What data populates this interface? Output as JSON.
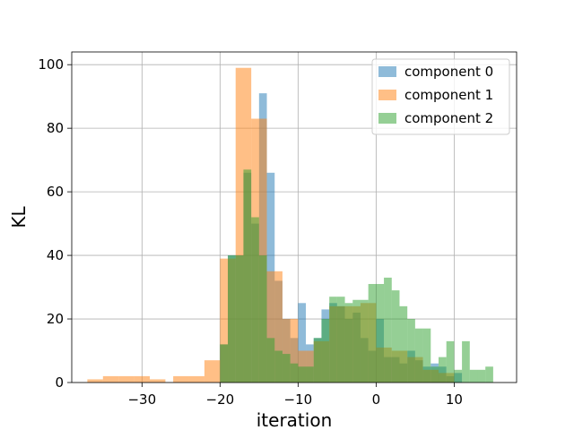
{
  "chart_data": {
    "type": "bar",
    "title": "",
    "xlabel": "iteration",
    "ylabel": "KL",
    "xlim": [
      -39,
      18
    ],
    "ylim": [
      0,
      104
    ],
    "x_ticks": [
      -30,
      -20,
      -10,
      0,
      10
    ],
    "x_tick_labels": [
      "−30",
      "−20",
      "−10",
      "0",
      "10"
    ],
    "y_ticks": [
      0,
      20,
      40,
      60,
      80,
      100
    ],
    "y_tick_labels": [
      "0",
      "20",
      "40",
      "60",
      "80",
      "100"
    ],
    "grid": true,
    "legend_position": "top-right",
    "series": [
      {
        "name": "component 0",
        "color": "#1f77b4",
        "bins": [
          {
            "x0": -20,
            "x1": -19,
            "value": 12
          },
          {
            "x0": -19,
            "x1": -18,
            "value": 40
          },
          {
            "x0": -18,
            "x1": -17,
            "value": 40
          },
          {
            "x0": -17,
            "x1": -16,
            "value": 66
          },
          {
            "x0": -16,
            "x1": -15,
            "value": 50
          },
          {
            "x0": -15,
            "x1": -14,
            "value": 91
          },
          {
            "x0": -14,
            "x1": -13,
            "value": 66
          },
          {
            "x0": -13,
            "x1": -12,
            "value": 32
          },
          {
            "x0": -12,
            "x1": -11,
            "value": 20
          },
          {
            "x0": -11,
            "x1": -10,
            "value": 14
          },
          {
            "x0": -10,
            "x1": -9,
            "value": 25
          },
          {
            "x0": -9,
            "x1": -8,
            "value": 12
          },
          {
            "x0": -8,
            "x1": -7,
            "value": 14
          },
          {
            "x0": -7,
            "x1": -6,
            "value": 23
          },
          {
            "x0": -6,
            "x1": -5,
            "value": 25
          },
          {
            "x0": -5,
            "x1": -4,
            "value": 24
          },
          {
            "x0": -4,
            "x1": -3,
            "value": 20
          },
          {
            "x0": -3,
            "x1": -2,
            "value": 22
          },
          {
            "x0": -2,
            "x1": -1,
            "value": 14
          },
          {
            "x0": -1,
            "x1": 0,
            "value": 10
          },
          {
            "x0": 0,
            "x1": 1,
            "value": 20
          },
          {
            "x0": 1,
            "x1": 2,
            "value": 8
          },
          {
            "x0": 2,
            "x1": 3,
            "value": 8
          },
          {
            "x0": 3,
            "x1": 4,
            "value": 6
          },
          {
            "x0": 4,
            "x1": 5,
            "value": 10
          },
          {
            "x0": 5,
            "x1": 6,
            "value": 7
          },
          {
            "x0": 6,
            "x1": 7,
            "value": 5
          },
          {
            "x0": 7,
            "x1": 8,
            "value": 6
          },
          {
            "x0": 8,
            "x1": 9,
            "value": 5
          },
          {
            "x0": 9,
            "x1": 10,
            "value": 2
          },
          {
            "x0": 10,
            "x1": 11,
            "value": 3
          }
        ]
      },
      {
        "name": "component 1",
        "color": "#ff7f0e",
        "bins": [
          {
            "x0": -37,
            "x1": -35,
            "value": 1
          },
          {
            "x0": -35,
            "x1": -33,
            "value": 2
          },
          {
            "x0": -33,
            "x1": -31,
            "value": 2
          },
          {
            "x0": -31,
            "x1": -29,
            "value": 2
          },
          {
            "x0": -29,
            "x1": -27,
            "value": 1
          },
          {
            "x0": -26,
            "x1": -24,
            "value": 2
          },
          {
            "x0": -24,
            "x1": -22,
            "value": 2
          },
          {
            "x0": -22,
            "x1": -20,
            "value": 7
          },
          {
            "x0": -20,
            "x1": -18,
            "value": 39
          },
          {
            "x0": -18,
            "x1": -16,
            "value": 99
          },
          {
            "x0": -16,
            "x1": -14,
            "value": 83
          },
          {
            "x0": -14,
            "x1": -12,
            "value": 35
          },
          {
            "x0": -12,
            "x1": -10,
            "value": 20
          },
          {
            "x0": -10,
            "x1": -8,
            "value": 10
          },
          {
            "x0": -8,
            "x1": -6,
            "value": 13
          },
          {
            "x0": -6,
            "x1": -4,
            "value": 24
          },
          {
            "x0": -4,
            "x1": -2,
            "value": 24
          },
          {
            "x0": -2,
            "x1": 0,
            "value": 25
          },
          {
            "x0": 0,
            "x1": 2,
            "value": 11
          },
          {
            "x0": 2,
            "x1": 4,
            "value": 10
          },
          {
            "x0": 4,
            "x1": 6,
            "value": 8
          },
          {
            "x0": 6,
            "x1": 8,
            "value": 4
          },
          {
            "x0": 8,
            "x1": 10,
            "value": 3
          }
        ]
      },
      {
        "name": "component 2",
        "color": "#2ca02c",
        "bins": [
          {
            "x0": -20,
            "x1": -19,
            "value": 12
          },
          {
            "x0": -19,
            "x1": -18,
            "value": 40
          },
          {
            "x0": -18,
            "x1": -17,
            "value": 40
          },
          {
            "x0": -17,
            "x1": -16,
            "value": 67
          },
          {
            "x0": -16,
            "x1": -15,
            "value": 52
          },
          {
            "x0": -15,
            "x1": -14,
            "value": 40
          },
          {
            "x0": -14,
            "x1": -13,
            "value": 14
          },
          {
            "x0": -13,
            "x1": -12,
            "value": 10
          },
          {
            "x0": -12,
            "x1": -11,
            "value": 9
          },
          {
            "x0": -11,
            "x1": -10,
            "value": 6
          },
          {
            "x0": -10,
            "x1": -9,
            "value": 5
          },
          {
            "x0": -9,
            "x1": -8,
            "value": 5
          },
          {
            "x0": -8,
            "x1": -7,
            "value": 14
          },
          {
            "x0": -7,
            "x1": -6,
            "value": 20
          },
          {
            "x0": -6,
            "x1": -5,
            "value": 27
          },
          {
            "x0": -5,
            "x1": -4,
            "value": 27
          },
          {
            "x0": -4,
            "x1": -3,
            "value": 25
          },
          {
            "x0": -3,
            "x1": -2,
            "value": 26
          },
          {
            "x0": -2,
            "x1": -1,
            "value": 26
          },
          {
            "x0": -1,
            "x1": 0,
            "value": 31
          },
          {
            "x0": 0,
            "x1": 1,
            "value": 31
          },
          {
            "x0": 1,
            "x1": 2,
            "value": 33
          },
          {
            "x0": 2,
            "x1": 3,
            "value": 29
          },
          {
            "x0": 3,
            "x1": 4,
            "value": 24
          },
          {
            "x0": 4,
            "x1": 5,
            "value": 20
          },
          {
            "x0": 5,
            "x1": 6,
            "value": 17
          },
          {
            "x0": 6,
            "x1": 7,
            "value": 17
          },
          {
            "x0": 7,
            "x1": 8,
            "value": 5
          },
          {
            "x0": 8,
            "x1": 9,
            "value": 8
          },
          {
            "x0": 9,
            "x1": 10,
            "value": 13
          },
          {
            "x0": 10,
            "x1": 11,
            "value": 4
          },
          {
            "x0": 11,
            "x1": 12,
            "value": 13
          },
          {
            "x0": 12,
            "x1": 13,
            "value": 4
          },
          {
            "x0": 13,
            "x1": 14,
            "value": 4
          },
          {
            "x0": 14,
            "x1": 15,
            "value": 5
          }
        ]
      }
    ]
  }
}
